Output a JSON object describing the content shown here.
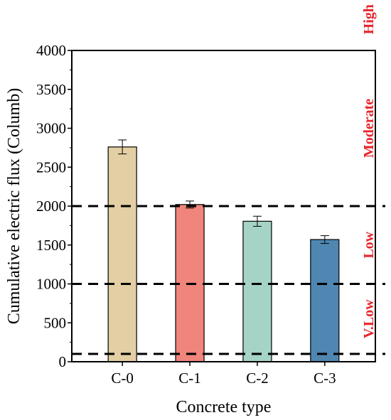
{
  "chart_data": {
    "type": "bar",
    "categories": [
      "C-0",
      "C-1",
      "C-2",
      "C-3"
    ],
    "values": [
      2760,
      2020,
      1805,
      1570
    ],
    "errors": [
      90,
      45,
      65,
      50
    ],
    "bar_colors": [
      "#e3cfa4",
      "#f0857c",
      "#a5d4c6",
      "#4f86b2"
    ],
    "xlabel": "Concrete type",
    "ylabel": "Cumulative electric flux (Columb)",
    "ylim": [
      0,
      4000
    ],
    "yticks": [
      0,
      500,
      1000,
      1500,
      2000,
      2500,
      3000,
      3500,
      4000
    ],
    "reference_lines": [
      100,
      1000,
      2000
    ],
    "zones": [
      {
        "label": "High",
        "center": 4400
      },
      {
        "label": "Moderate",
        "center": 3000
      },
      {
        "label": "Low",
        "center": 1500
      },
      {
        "label": "V.Low",
        "center": 550
      }
    ],
    "zone_color": "#e8242c",
    "grid": false
  }
}
